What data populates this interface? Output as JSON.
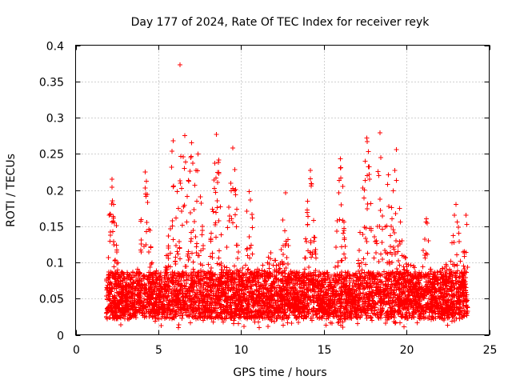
{
  "chart_data": {
    "type": "scatter",
    "title": "Day 177 of 2024, Rate Of TEC Index for receiver reyk",
    "xlabel": "GPS time / hours",
    "ylabel": "ROTI / TECUs",
    "xlim": [
      0,
      25
    ],
    "ylim": [
      0,
      0.4
    ],
    "xticks": [
      0,
      5,
      10,
      15,
      20,
      25
    ],
    "xtick_labels": [
      "0",
      "5",
      "10",
      "15",
      "20",
      "25"
    ],
    "yticks": [
      0,
      0.05,
      0.1,
      0.15,
      0.2,
      0.25,
      0.3,
      0.35,
      0.4
    ],
    "ytick_labels": [
      "0",
      "0.05",
      "0.1",
      "0.15",
      "0.2",
      "0.25",
      "0.3",
      "0.35",
      "0.4"
    ],
    "grid": true,
    "marker": "plus",
    "color": "#ff0000",
    "series": [
      {
        "name": "ROTI",
        "x_range": [
          1.85,
          23.7
        ],
        "typical_range": [
          0.02,
          0.1
        ],
        "notable_points": [
          {
            "x": 6.3,
            "y": 0.373
          },
          {
            "x": 18.4,
            "y": 0.279
          },
          {
            "x": 8.5,
            "y": 0.277
          },
          {
            "x": 6.6,
            "y": 0.275
          },
          {
            "x": 17.6,
            "y": 0.272
          },
          {
            "x": 5.9,
            "y": 0.268
          },
          {
            "x": 7.0,
            "y": 0.265
          },
          {
            "x": 9.5,
            "y": 0.258
          },
          {
            "x": 19.4,
            "y": 0.256
          },
          {
            "x": 16.0,
            "y": 0.243
          },
          {
            "x": 17.5,
            "y": 0.24
          },
          {
            "x": 7.4,
            "y": 0.25
          },
          {
            "x": 14.2,
            "y": 0.227
          },
          {
            "x": 18.9,
            "y": 0.221
          },
          {
            "x": 2.2,
            "y": 0.215
          },
          {
            "x": 4.2,
            "y": 0.225
          },
          {
            "x": 10.5,
            "y": 0.198
          },
          {
            "x": 12.7,
            "y": 0.196
          },
          {
            "x": 21.2,
            "y": 0.16
          },
          {
            "x": 23.0,
            "y": 0.18
          },
          {
            "x": 23.6,
            "y": 0.165
          }
        ]
      }
    ]
  }
}
